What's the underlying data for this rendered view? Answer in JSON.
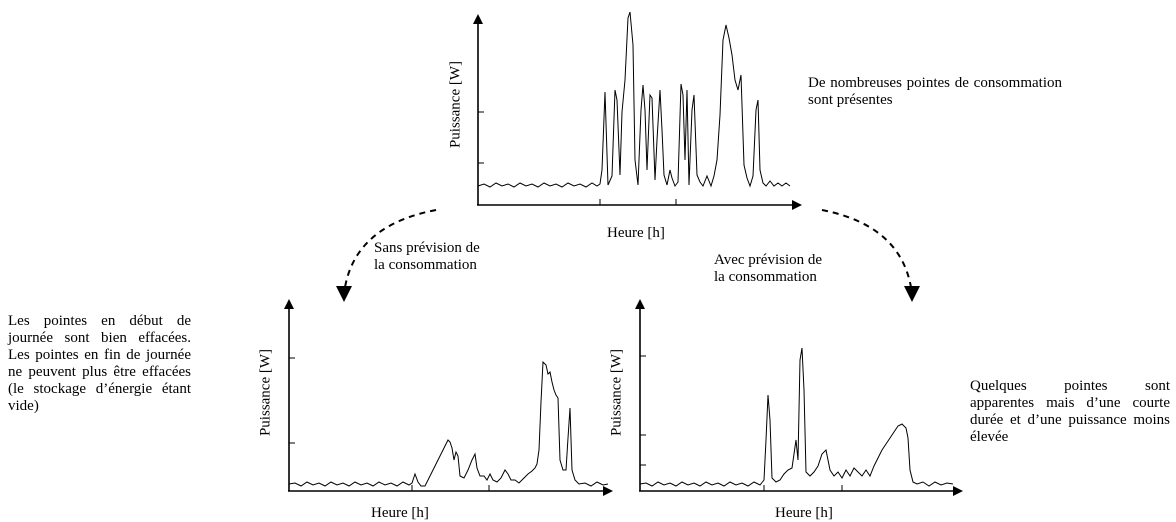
{
  "top_chart": {
    "ylabel": "Puissance [W]",
    "xlabel": "Heure [h]",
    "note": "De nombreuses pointes de consommation sont présentes"
  },
  "left_chart": {
    "ylabel": "Puissance [W]",
    "xlabel": "Heure [h]",
    "note": "Les pointes en début de journée sont bien effacées. Les pointes en fin de journée ne peuvent plus être effacées (le stockage d’énergie étant vide)"
  },
  "right_chart": {
    "ylabel": "Puissance [W]",
    "xlabel": "Heure [h]",
    "note": "Quelques pointes sont apparentes mais d’une courte durée et d’une puissance moins élevée"
  },
  "branches": {
    "left_label_line1": "Sans prévision de",
    "left_label_line2": "la consommation",
    "right_label_line1": "Avec prévision de",
    "right_label_line2": "la consommation"
  },
  "colors": {
    "ink": "#000000",
    "background": "#ffffff"
  }
}
